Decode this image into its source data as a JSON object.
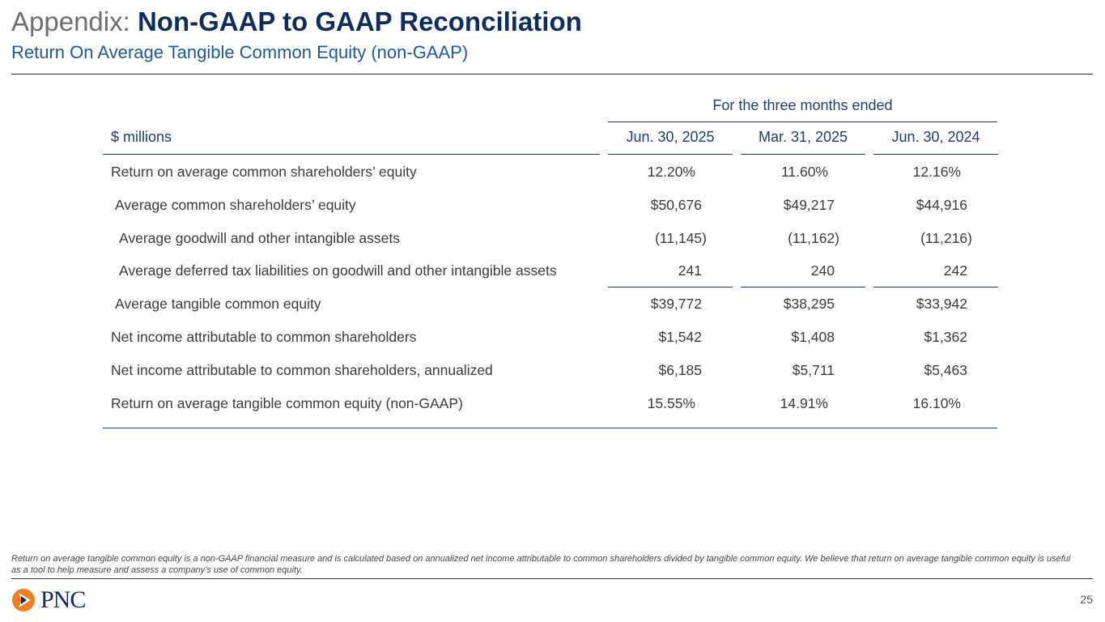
{
  "header": {
    "title_prefix": "Appendix:",
    "title_main": "Non-GAAP to GAAP Reconciliation",
    "subtitle": "Return On Average Tangible Common Equity (non-GAAP)"
  },
  "table": {
    "period_header": "For the three months ended",
    "unit_label": "$ millions",
    "columns": [
      "Jun. 30, 2025",
      "Mar. 31, 2025",
      "Jun. 30, 2024"
    ],
    "rows": [
      {
        "label": "Return on average common shareholders’ equity",
        "values": [
          "12.20%",
          "11.60%",
          "12.16%"
        ]
      },
      {
        "label": "Average common shareholders’ equity",
        "values": [
          "$50,676",
          "$49,217",
          "$44,916"
        ]
      },
      {
        "label": "Average goodwill and other intangible assets",
        "values": [
          "(11,145)",
          "(11,162)",
          "(11,216)"
        ]
      },
      {
        "label": "Average deferred tax liabilities on goodwill and other intangible assets",
        "values": [
          "241",
          "240",
          "242"
        ]
      },
      {
        "label": "Average tangible common equity",
        "values": [
          "$39,772",
          "$38,295",
          "$33,942"
        ]
      },
      {
        "label": "Net income attributable to common shareholders",
        "values": [
          "$1,542",
          "$1,408",
          "$1,362"
        ]
      },
      {
        "label": "Net income attributable to common shareholders, annualized",
        "values": [
          "$6,185",
          "$5,711",
          "$5,463"
        ]
      },
      {
        "label": "Return on average tangible common equity (non-GAAP)",
        "values": [
          "15.55%",
          "14.91%",
          "16.10%"
        ]
      }
    ]
  },
  "footnote": "Return on average tangible common equity is a non-GAAP financial measure and is calculated based on annualized net income attributable to common shareholders divided by tangible common equity. We believe that return on average tangible common equity is useful as a tool to help measure and assess a company’s use of common equity.",
  "footer": {
    "logo": "PNC",
    "page_number": "25"
  }
}
